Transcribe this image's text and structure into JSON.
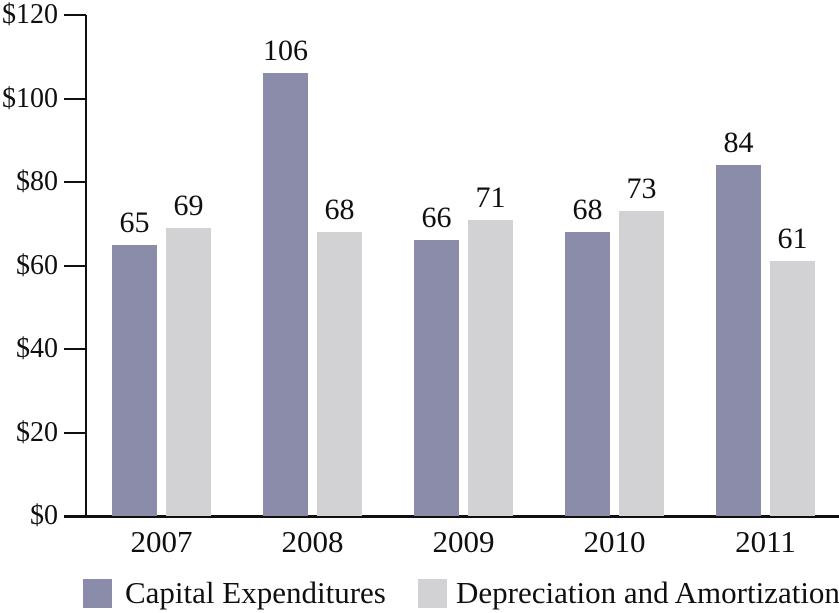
{
  "chart_data": {
    "type": "bar",
    "categories": [
      "2007",
      "2008",
      "2009",
      "2010",
      "2011"
    ],
    "series": [
      {
        "name": "Capital Expenditures",
        "color": "#8b8baa",
        "values": [
          65,
          106,
          66,
          68,
          84
        ]
      },
      {
        "name": "Depreciation and Amortization",
        "color": "#d2d2d4",
        "values": [
          69,
          68,
          71,
          73,
          61
        ]
      }
    ],
    "title": "",
    "xlabel": "",
    "ylabel": "",
    "ylim": [
      0,
      120
    ],
    "ytick_step": 20,
    "ytick_labels": [
      "$0",
      "$20",
      "$40",
      "$60",
      "$80",
      "$100",
      "$120"
    ],
    "value_labels": true,
    "grid": false,
    "legend_position": "bottom",
    "axis_color": "#0f0f0f",
    "text_color": "#0f0f0f",
    "background_color": "#ffffff"
  }
}
